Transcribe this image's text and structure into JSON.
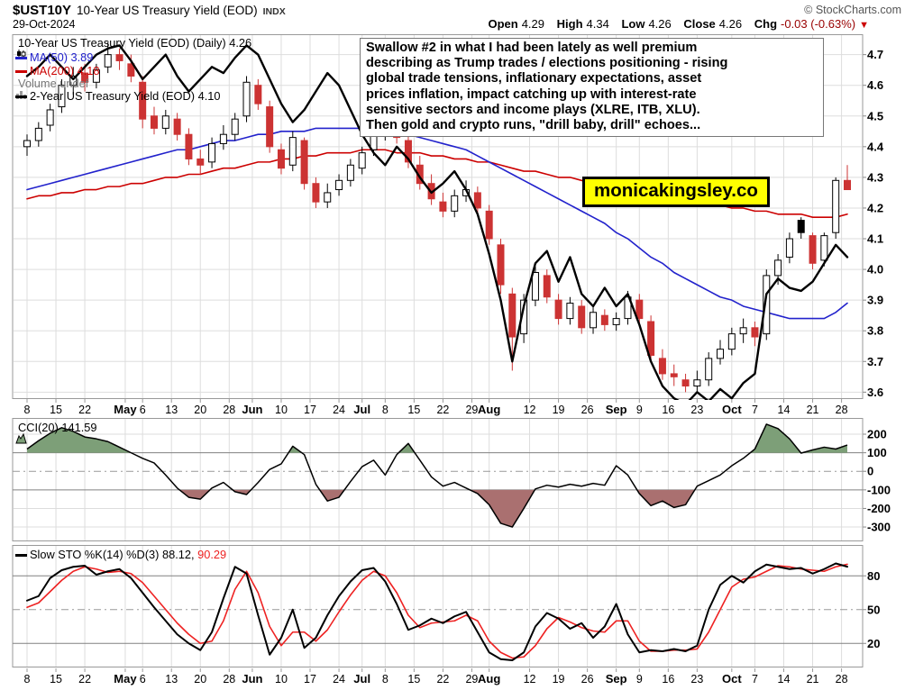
{
  "header": {
    "symbol": "$UST10Y",
    "title": "10-Year US Treasury Yield (EOD)",
    "exchange": "INDX",
    "date": "29-Oct-2024",
    "copyright": "© StockCharts.com",
    "quote": {
      "open_label": "Open",
      "open_value": "4.29",
      "high_label": "High",
      "high_value": "4.34",
      "low_label": "Low",
      "low_value": "4.26",
      "close_label": "Close",
      "close_value": "4.26",
      "chg_label": "Chg",
      "chg_value": "-0.03 (-0.63%)",
      "down_arrow": "▼"
    }
  },
  "legend": {
    "main": "10-Year US Treasury Yield (EOD) (Daily) 4.26",
    "ma50": "MA(50) 3.89",
    "ma200": "MA(200) 4.18",
    "volume": "Volume undef",
    "secondary": "2-Year US Treasury Yield (EOD) 4.10",
    "cci": "CCI(20) 141.59",
    "sto_k": "Slow STO %K(14) %D(3) 88.12,",
    "sto_d": "90.29"
  },
  "annotation": {
    "lines": [
      "Swallow #2 in what I had been lately as well premium",
      "describing as Trump trades / elections positioning - rising",
      "global trade tensions, inflationary expectations, asset",
      "prices inflation, impact catching up with interest-rate",
      "sensitive sectors and income plays (XLRE, ITB, XLU).",
      "Then gold and crypto runs, \"drill baby, drill\" echoes..."
    ]
  },
  "watermark": "monicakingsley.co",
  "colors": {
    "candle_down": "#cc3333",
    "candle_up": "#000000",
    "ma50": "#2222cc",
    "ma200": "#cc0000",
    "line2y": "#000000",
    "cci_fill_above": "#7d9f78",
    "cci_fill_below": "#aa7070",
    "sto_k": "#000000",
    "sto_d": "#ee2222",
    "grid": "#dddddd",
    "panel_border": "#999999",
    "threshold": "#808080",
    "dashdot": "#999999"
  },
  "chart_data": [
    {
      "type": "candlestick",
      "title": "10-Year US Treasury Yield (EOD) (Daily)",
      "last": 4.26,
      "ylim": [
        3.579,
        4.765
      ],
      "y_ticks": [
        4.7,
        4.6,
        4.5,
        4.4,
        4.3,
        4.2,
        4.1,
        4.0,
        3.9,
        3.8,
        3.7,
        3.6
      ],
      "total_days": 142,
      "x_ticks": [
        {
          "day": 0,
          "label": "8"
        },
        {
          "day": 5,
          "label": "15"
        },
        {
          "day": 10,
          "label": "22"
        },
        {
          "day": 17,
          "label": "May",
          "month": true
        },
        {
          "day": 20,
          "label": "6"
        },
        {
          "day": 25,
          "label": "13"
        },
        {
          "day": 30,
          "label": "20"
        },
        {
          "day": 35,
          "label": "28"
        },
        {
          "day": 39,
          "label": "Jun",
          "month": true
        },
        {
          "day": 44,
          "label": "10"
        },
        {
          "day": 49,
          "label": "17"
        },
        {
          "day": 54,
          "label": "24"
        },
        {
          "day": 58,
          "label": "Jul",
          "month": true
        },
        {
          "day": 62,
          "label": "8"
        },
        {
          "day": 67,
          "label": "15"
        },
        {
          "day": 72,
          "label": "22"
        },
        {
          "day": 77,
          "label": "29"
        },
        {
          "day": 80,
          "label": "Aug",
          "month": true
        },
        {
          "day": 87,
          "label": "12"
        },
        {
          "day": 92,
          "label": "19"
        },
        {
          "day": 97,
          "label": "26"
        },
        {
          "day": 102,
          "label": "Sep",
          "month": true
        },
        {
          "day": 106,
          "label": "9"
        },
        {
          "day": 111,
          "label": "16"
        },
        {
          "day": 116,
          "label": "23"
        },
        {
          "day": 122,
          "label": "Oct",
          "month": true
        },
        {
          "day": 126,
          "label": "7"
        },
        {
          "day": 131,
          "label": "14"
        },
        {
          "day": 136,
          "label": "21"
        },
        {
          "day": 141,
          "label": "28"
        }
      ],
      "ohlc": [
        [
          4.4,
          4.44,
          4.37,
          4.42
        ],
        [
          4.42,
          4.48,
          4.4,
          4.46
        ],
        [
          4.47,
          4.54,
          4.45,
          4.52
        ],
        [
          4.53,
          4.62,
          4.51,
          4.6
        ],
        [
          4.6,
          4.66,
          4.57,
          4.63
        ],
        [
          4.64,
          4.67,
          4.58,
          4.61
        ],
        [
          4.61,
          4.67,
          4.59,
          4.65
        ],
        [
          4.66,
          4.74,
          4.64,
          4.7
        ],
        [
          4.7,
          4.72,
          4.65,
          4.68
        ],
        [
          4.67,
          4.7,
          4.61,
          4.63
        ],
        [
          4.61,
          4.63,
          4.46,
          4.49
        ],
        [
          4.5,
          4.53,
          4.44,
          4.46
        ],
        [
          4.46,
          4.52,
          4.44,
          4.5
        ],
        [
          4.49,
          4.51,
          4.42,
          4.44
        ],
        [
          4.44,
          4.46,
          4.34,
          4.36
        ],
        [
          4.36,
          4.39,
          4.31,
          4.34
        ],
        [
          4.35,
          4.43,
          4.33,
          4.41
        ],
        [
          4.41,
          4.47,
          4.39,
          4.44
        ],
        [
          4.44,
          4.51,
          4.42,
          4.49
        ],
        [
          4.5,
          4.63,
          4.48,
          4.61
        ],
        [
          4.6,
          4.62,
          4.52,
          4.54
        ],
        [
          4.53,
          4.55,
          4.38,
          4.4
        ],
        [
          4.39,
          4.41,
          4.31,
          4.33
        ],
        [
          4.34,
          4.45,
          4.32,
          4.43
        ],
        [
          4.42,
          4.43,
          4.26,
          4.28
        ],
        [
          4.28,
          4.3,
          4.2,
          4.22
        ],
        [
          4.22,
          4.28,
          4.2,
          4.25
        ],
        [
          4.26,
          4.31,
          4.24,
          4.29
        ],
        [
          4.29,
          4.36,
          4.27,
          4.34
        ],
        [
          4.33,
          4.4,
          4.31,
          4.38
        ],
        [
          4.39,
          4.46,
          4.37,
          4.44
        ],
        [
          4.44,
          4.5,
          4.42,
          4.48
        ],
        [
          4.47,
          4.49,
          4.41,
          4.43
        ],
        [
          4.42,
          4.45,
          4.33,
          4.35
        ],
        [
          4.34,
          4.37,
          4.26,
          4.28
        ],
        [
          4.28,
          4.31,
          4.21,
          4.23
        ],
        [
          4.22,
          4.25,
          4.17,
          4.19
        ],
        [
          4.19,
          4.26,
          4.17,
          4.24
        ],
        [
          4.24,
          4.29,
          4.22,
          4.26
        ],
        [
          4.25,
          4.27,
          4.18,
          4.2
        ],
        [
          4.19,
          4.21,
          4.08,
          4.1
        ],
        [
          4.08,
          4.1,
          3.92,
          3.95
        ],
        [
          3.92,
          3.94,
          3.67,
          3.78
        ],
        [
          3.79,
          3.92,
          3.76,
          3.9
        ],
        [
          3.9,
          4.01,
          3.88,
          3.99
        ],
        [
          3.98,
          4.0,
          3.89,
          3.91
        ],
        [
          3.9,
          3.92,
          3.82,
          3.84
        ],
        [
          3.84,
          3.91,
          3.82,
          3.89
        ],
        [
          3.88,
          3.9,
          3.79,
          3.81
        ],
        [
          3.81,
          3.88,
          3.79,
          3.86
        ],
        [
          3.85,
          3.87,
          3.8,
          3.82
        ],
        [
          3.82,
          3.86,
          3.8,
          3.84
        ],
        [
          3.84,
          3.93,
          3.82,
          3.91
        ],
        [
          3.9,
          3.92,
          3.82,
          3.84
        ],
        [
          3.83,
          3.85,
          3.7,
          3.72
        ],
        [
          3.71,
          3.74,
          3.64,
          3.66
        ],
        [
          3.66,
          3.69,
          3.62,
          3.65
        ],
        [
          3.64,
          3.66,
          3.6,
          3.62
        ],
        [
          3.62,
          3.67,
          3.6,
          3.64
        ],
        [
          3.64,
          3.73,
          3.62,
          3.71
        ],
        [
          3.71,
          3.77,
          3.69,
          3.74
        ],
        [
          3.74,
          3.81,
          3.72,
          3.79
        ],
        [
          3.79,
          3.84,
          3.76,
          3.81
        ],
        [
          3.81,
          3.83,
          3.75,
          3.78
        ],
        [
          3.79,
          4.0,
          3.77,
          3.98
        ],
        [
          3.98,
          4.05,
          3.95,
          4.03
        ],
        [
          4.04,
          4.12,
          4.02,
          4.1
        ],
        [
          4.16,
          4.17,
          4.1,
          4.12
        ],
        [
          4.11,
          4.12,
          4.0,
          4.02
        ],
        [
          4.03,
          4.12,
          4.01,
          4.11
        ],
        [
          4.12,
          4.3,
          4.1,
          4.29
        ],
        [
          4.29,
          4.34,
          4.26,
          4.26
        ]
      ],
      "overlays": [
        {
          "name": "MA(50)",
          "value": 3.89,
          "color": "#2222cc",
          "width": 1.6,
          "values": [
            4.26,
            4.27,
            4.28,
            4.29,
            4.3,
            4.31,
            4.32,
            4.33,
            4.34,
            4.35,
            4.36,
            4.37,
            4.38,
            4.39,
            4.39,
            4.4,
            4.41,
            4.42,
            4.42,
            4.43,
            4.44,
            4.44,
            4.45,
            4.45,
            4.45,
            4.46,
            4.46,
            4.46,
            4.46,
            4.46,
            4.46,
            4.45,
            4.45,
            4.44,
            4.43,
            4.42,
            4.41,
            4.4,
            4.39,
            4.37,
            4.35,
            4.33,
            4.31,
            4.29,
            4.27,
            4.25,
            4.23,
            4.21,
            4.19,
            4.17,
            4.15,
            4.12,
            4.1,
            4.07,
            4.04,
            4.02,
            3.99,
            3.97,
            3.95,
            3.93,
            3.91,
            3.9,
            3.88,
            3.87,
            3.86,
            3.85,
            3.84,
            3.84,
            3.84,
            3.84,
            3.86,
            3.89
          ]
        },
        {
          "name": "MA(200)",
          "value": 4.18,
          "color": "#cc0000",
          "width": 1.6,
          "values": [
            4.23,
            4.24,
            4.24,
            4.25,
            4.25,
            4.26,
            4.26,
            4.27,
            4.27,
            4.28,
            4.28,
            4.29,
            4.3,
            4.3,
            4.31,
            4.31,
            4.32,
            4.33,
            4.33,
            4.34,
            4.35,
            4.35,
            4.36,
            4.36,
            4.37,
            4.37,
            4.38,
            4.38,
            4.38,
            4.39,
            4.39,
            4.39,
            4.38,
            4.38,
            4.38,
            4.37,
            4.37,
            4.36,
            4.36,
            4.35,
            4.35,
            4.34,
            4.33,
            4.32,
            4.32,
            4.31,
            4.3,
            4.3,
            4.29,
            4.28,
            4.28,
            4.27,
            4.26,
            4.26,
            4.25,
            4.24,
            4.24,
            4.23,
            4.22,
            4.22,
            4.21,
            4.2,
            4.2,
            4.19,
            4.19,
            4.18,
            4.18,
            4.18,
            4.17,
            4.17,
            4.17,
            4.18
          ]
        },
        {
          "name": "2-Year US Treasury Yield (EOD)",
          "value": 4.1,
          "color": "#000000",
          "width": 2.4,
          "values": [
            4.63,
            4.66,
            4.7,
            4.66,
            4.62,
            4.66,
            4.7,
            4.72,
            4.73,
            4.68,
            4.62,
            4.66,
            4.7,
            4.63,
            4.58,
            4.62,
            4.66,
            4.64,
            4.69,
            4.73,
            4.7,
            4.62,
            4.54,
            4.48,
            4.52,
            4.58,
            4.64,
            4.6,
            4.52,
            4.44,
            4.38,
            4.34,
            4.4,
            4.36,
            4.3,
            4.25,
            4.28,
            4.32,
            4.26,
            4.18,
            4.05,
            3.9,
            3.7,
            3.88,
            4.02,
            4.06,
            3.96,
            4.04,
            3.92,
            3.88,
            3.94,
            3.88,
            3.92,
            3.82,
            3.7,
            3.62,
            3.58,
            3.56,
            3.6,
            3.57,
            3.61,
            3.58,
            3.63,
            3.66,
            3.92,
            3.97,
            3.94,
            3.93,
            3.96,
            4.02,
            4.08,
            4.04
          ]
        }
      ],
      "volume": "undef"
    },
    {
      "type": "area-line",
      "title": "CCI(20)",
      "last": 141.59,
      "ylim": [
        -375,
        285
      ],
      "y_ticks": [
        200,
        100,
        0,
        -100,
        -200,
        -300
      ],
      "thresholds": {
        "upper": 100,
        "mid": 0,
        "lower": -100
      },
      "light_grid": [
        200,
        -200,
        -300
      ],
      "values": [
        120,
        165,
        205,
        235,
        215,
        185,
        175,
        160,
        130,
        100,
        70,
        45,
        -20,
        -90,
        -140,
        -150,
        -90,
        -60,
        -110,
        -125,
        -60,
        10,
        40,
        135,
        90,
        -70,
        -160,
        -140,
        -55,
        25,
        60,
        -20,
        90,
        150,
        60,
        -30,
        -80,
        -60,
        -90,
        -120,
        -180,
        -280,
        -300,
        -200,
        -95,
        -75,
        -85,
        -70,
        -80,
        -65,
        -75,
        30,
        -20,
        -120,
        -185,
        -160,
        -195,
        -180,
        -80,
        -50,
        -20,
        30,
        70,
        120,
        254,
        230,
        175,
        98,
        115,
        130,
        120,
        141.59
      ]
    },
    {
      "type": "line",
      "title": "Slow STO %K(14) %D(3)",
      "k_last": 88.12,
      "d_last": 90.29,
      "ylim": [
        -1,
        107
      ],
      "y_ticks": [
        80,
        50,
        20
      ],
      "thresholds": {
        "upper": 80,
        "mid": 50,
        "lower": 20
      },
      "series": [
        {
          "name": "%K",
          "color": "#000000",
          "width": 2,
          "values": [
            58,
            62,
            78,
            85,
            88,
            89,
            81,
            84,
            86,
            78,
            65,
            52,
            40,
            28,
            20,
            14,
            30,
            60,
            88,
            82,
            45,
            10,
            25,
            50,
            16,
            25,
            45,
            62,
            75,
            85,
            87,
            75,
            55,
            32,
            36,
            42,
            38,
            44,
            48,
            30,
            12,
            6,
            5,
            12,
            35,
            47,
            42,
            33,
            38,
            25,
            35,
            55,
            28,
            12,
            14,
            13,
            15,
            13,
            18,
            50,
            72,
            80,
            74,
            84,
            90,
            88,
            86,
            87,
            82,
            86,
            91,
            88.12
          ]
        },
        {
          "name": "%D",
          "color": "#ee2222",
          "width": 1.6,
          "values": [
            52,
            56,
            66,
            76,
            84,
            88,
            86,
            83,
            84,
            82,
            74,
            62,
            50,
            38,
            28,
            20,
            22,
            40,
            68,
            84,
            65,
            35,
            18,
            30,
            30,
            22,
            32,
            48,
            63,
            76,
            84,
            80,
            65,
            45,
            34,
            38,
            39,
            40,
            45,
            40,
            22,
            12,
            7,
            8,
            18,
            33,
            43,
            39,
            34,
            31,
            30,
            40,
            40,
            22,
            13,
            13,
            14,
            14,
            15,
            30,
            50,
            70,
            77,
            79,
            84,
            89,
            88,
            86,
            85,
            84,
            88,
            90.29
          ]
        }
      ]
    }
  ]
}
